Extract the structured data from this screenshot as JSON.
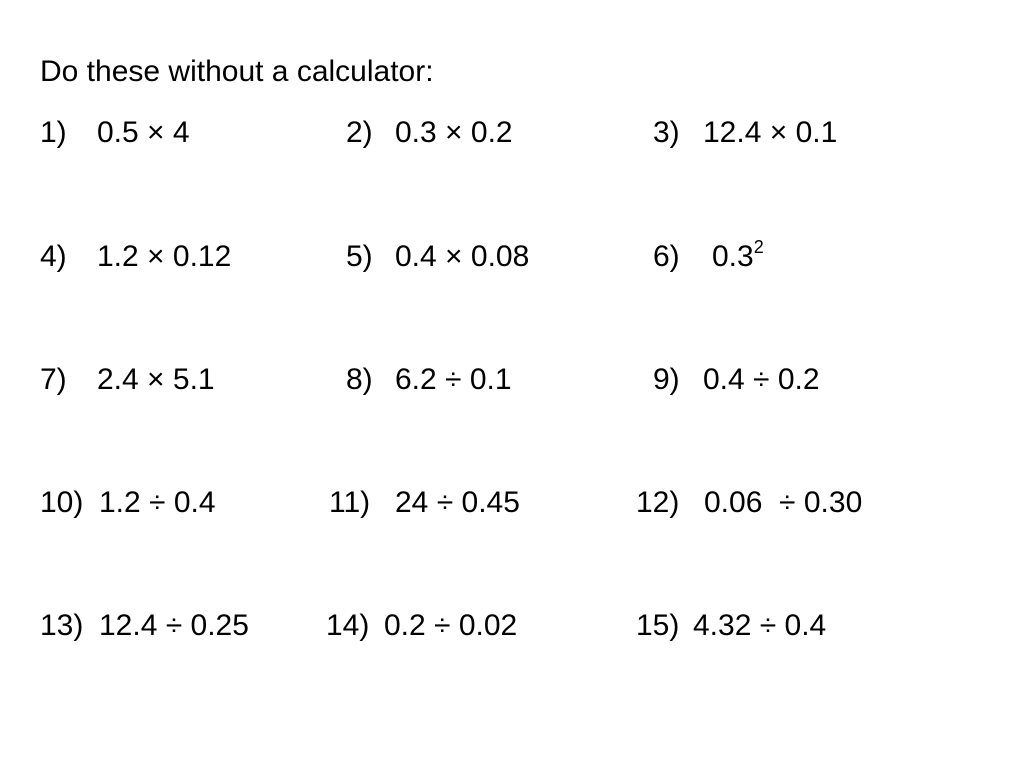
{
  "title": "Do these without a calculator:",
  "problems": [
    {
      "num": "1)",
      "expr": "0.5 × 4"
    },
    {
      "num": "2)",
      "expr": "0.3 × 0.2"
    },
    {
      "num": "3)",
      "expr": "12.4 × 0.1"
    },
    {
      "num": "4)",
      "expr": "1.2 × 0.12"
    },
    {
      "num": "5)",
      "expr": "0.4 × 0.08"
    },
    {
      "num": "6)",
      "expr": "0.3",
      "sup": "2"
    },
    {
      "num": "7)",
      "expr": "2.4 × 5.1"
    },
    {
      "num": "8)",
      "expr": "6.2 ÷ 0.1"
    },
    {
      "num": "9)",
      "expr": "0.4 ÷ 0.2"
    },
    {
      "num": "10)",
      "expr": "1.2 ÷ 0.4"
    },
    {
      "num": "11)",
      "expr": "24 ÷ 0.45"
    },
    {
      "num": "12)",
      "expr": "0.06  ÷ 0.30"
    },
    {
      "num": "13)",
      "expr": "12.4 ÷ 0.25"
    },
    {
      "num": "14)",
      "expr": "0.2 ÷ 0.02"
    },
    {
      "num": "15)",
      "expr": "4.32 ÷ 0.4"
    }
  ]
}
